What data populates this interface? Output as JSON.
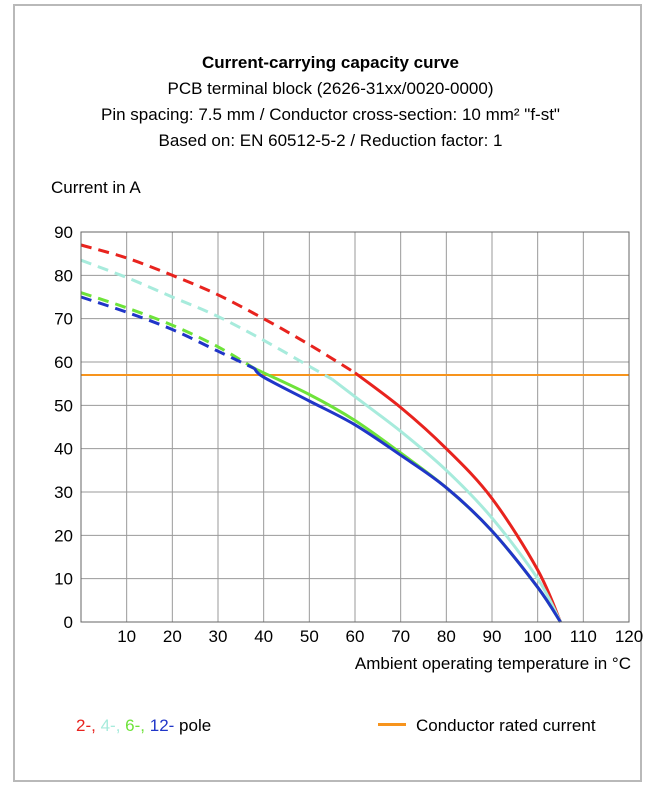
{
  "header": {
    "title": "Current-carrying capacity curve",
    "subtitle": "PCB terminal block (2626-31xx/0020-0000)",
    "spec": "Pin spacing: 7.5 mm / Conductor cross-section: 10 mm² \"f-st\"",
    "basis": "Based on: EN 60512-5-2 / Reduction factor: 1"
  },
  "legend": {
    "poles": [
      {
        "text": "2-",
        "color": "#e8231e"
      },
      {
        "text": ", ",
        "color": "#e8231e"
      },
      {
        "text": "4-",
        "color": "#a7ebdc"
      },
      {
        "text": ", ",
        "color": "#a7ebdc"
      },
      {
        "text": "6-",
        "color": "#6ee33a"
      },
      {
        "text": ", ",
        "color": "#6ee33a"
      },
      {
        "text": "12-",
        "color": "#2036c8"
      },
      {
        "text": " pole",
        "color": "#000000"
      }
    ],
    "rated_label": "Conductor rated current",
    "rated_color": "#f7941d"
  },
  "chart_data": {
    "type": "line",
    "xlabel": "Ambient operating temperature in °C",
    "ylabel": "Current in A",
    "xlim": [
      0,
      120
    ],
    "ylim": [
      0,
      90
    ],
    "xticks": [
      10,
      20,
      30,
      40,
      50,
      60,
      70,
      80,
      90,
      100,
      110,
      120
    ],
    "yticks": [
      0,
      10,
      20,
      30,
      40,
      50,
      60,
      70,
      80,
      90
    ],
    "grid": true,
    "rated_current": 57,
    "series": [
      {
        "name": "2-",
        "color": "#e8231e",
        "dashed_until": 60,
        "x": [
          0,
          10,
          20,
          30,
          40,
          50,
          60,
          70,
          80,
          90,
          100,
          105
        ],
        "y": [
          87,
          84,
          80,
          75.5,
          70,
          64,
          57.5,
          49.5,
          40,
          28.5,
          12,
          0
        ]
      },
      {
        "name": "4-",
        "color": "#a7ebdc",
        "dashed_until": 55,
        "x": [
          0,
          10,
          20,
          30,
          40,
          50,
          55,
          60,
          70,
          80,
          90,
          100,
          105
        ],
        "y": [
          83.5,
          79.5,
          75,
          70.5,
          65,
          59,
          56,
          52,
          44,
          35,
          24,
          10,
          0
        ]
      },
      {
        "name": "6-",
        "color": "#6ee33a",
        "dashed_until": 38,
        "x": [
          0,
          10,
          20,
          30,
          38,
          40,
          50,
          60,
          70,
          80,
          90,
          100,
          105
        ],
        "y": [
          76,
          72.5,
          68.5,
          63.5,
          58.5,
          57.5,
          52.5,
          46.5,
          39,
          31,
          21,
          8,
          0
        ]
      },
      {
        "name": "12-",
        "color": "#2036c8",
        "dashed_until": 38,
        "x": [
          0,
          10,
          20,
          30,
          38,
          40,
          50,
          60,
          70,
          80,
          90,
          100,
          105
        ],
        "y": [
          75,
          71.5,
          67.5,
          62.5,
          58.5,
          56.5,
          51,
          45.5,
          38.5,
          31,
          21,
          8,
          0
        ]
      }
    ]
  }
}
